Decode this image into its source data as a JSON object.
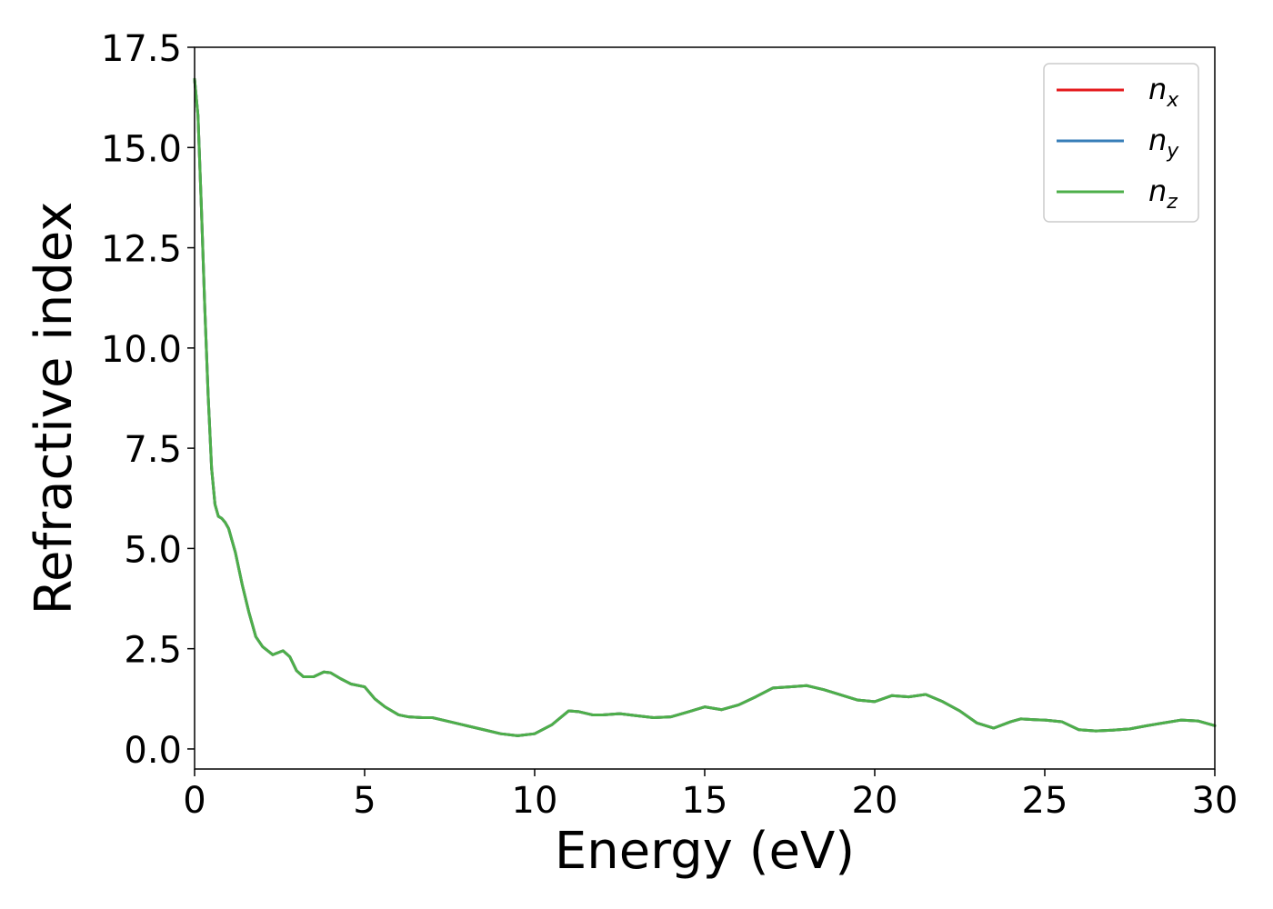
{
  "chart_data": {
    "type": "line",
    "xlabel": "Energy (eV)",
    "ylabel": "Refractive index",
    "xlim": [
      0,
      30
    ],
    "ylim": [
      -0.5,
      17.5
    ],
    "xticks": [
      {
        "value": 0,
        "label": "0"
      },
      {
        "value": 5,
        "label": "5"
      },
      {
        "value": 10,
        "label": "10"
      },
      {
        "value": 15,
        "label": "15"
      },
      {
        "value": 20,
        "label": "20"
      },
      {
        "value": 25,
        "label": "25"
      },
      {
        "value": 30,
        "label": "30"
      }
    ],
    "yticks": [
      {
        "value": 0.0,
        "label": "0.0"
      },
      {
        "value": 2.5,
        "label": "2.5"
      },
      {
        "value": 5.0,
        "label": "5.0"
      },
      {
        "value": 7.5,
        "label": "7.5"
      },
      {
        "value": 10.0,
        "label": "10.0"
      },
      {
        "value": 12.5,
        "label": "12.5"
      },
      {
        "value": 15.0,
        "label": "15.0"
      },
      {
        "value": 17.5,
        "label": "17.5"
      }
    ],
    "grid": false,
    "legend_position": "top-right",
    "series": [
      {
        "name": "n",
        "subscript": "x",
        "color": "#e41a1c"
      },
      {
        "name": "n",
        "subscript": "y",
        "color": "#377eb8"
      },
      {
        "name": "n",
        "subscript": "z",
        "color": "#4daf4a"
      }
    ],
    "x": [
      0,
      0.1,
      0.2,
      0.3,
      0.4,
      0.5,
      0.6,
      0.7,
      0.8,
      0.9,
      1.0,
      1.2,
      1.4,
      1.6,
      1.8,
      2.0,
      2.3,
      2.6,
      2.8,
      3.0,
      3.2,
      3.5,
      3.8,
      4.0,
      4.3,
      4.6,
      5.0,
      5.3,
      5.6,
      6.0,
      6.3,
      6.7,
      7.0,
      7.5,
      8.0,
      8.5,
      9.0,
      9.5,
      10.0,
      10.5,
      11.0,
      11.3,
      11.7,
      12.0,
      12.5,
      13.0,
      13.5,
      14.0,
      14.5,
      15.0,
      15.5,
      16.0,
      16.5,
      17.0,
      17.5,
      18.0,
      18.5,
      19.0,
      19.5,
      20.0,
      20.5,
      21.0,
      21.5,
      22.0,
      22.5,
      23.0,
      23.5,
      24.0,
      24.3,
      24.7,
      25.0,
      25.5,
      26.0,
      26.5,
      27.0,
      27.5,
      28.0,
      28.5,
      29.0,
      29.5,
      30.0
    ],
    "y": [
      16.7,
      15.8,
      13.5,
      11.0,
      8.8,
      7.0,
      6.1,
      5.8,
      5.75,
      5.65,
      5.5,
      4.9,
      4.1,
      3.4,
      2.8,
      2.55,
      2.35,
      2.45,
      2.3,
      1.95,
      1.8,
      1.8,
      1.92,
      1.9,
      1.75,
      1.62,
      1.55,
      1.25,
      1.05,
      0.85,
      0.8,
      0.78,
      0.78,
      0.68,
      0.58,
      0.48,
      0.38,
      0.33,
      0.38,
      0.6,
      0.95,
      0.93,
      0.85,
      0.85,
      0.88,
      0.83,
      0.78,
      0.8,
      0.92,
      1.05,
      0.98,
      1.1,
      1.3,
      1.52,
      1.55,
      1.58,
      1.48,
      1.35,
      1.22,
      1.18,
      1.33,
      1.3,
      1.36,
      1.18,
      0.95,
      0.65,
      0.52,
      0.68,
      0.75,
      0.73,
      0.72,
      0.68,
      0.48,
      0.45,
      0.47,
      0.5,
      0.58,
      0.65,
      0.72,
      0.7,
      0.58
    ]
  }
}
